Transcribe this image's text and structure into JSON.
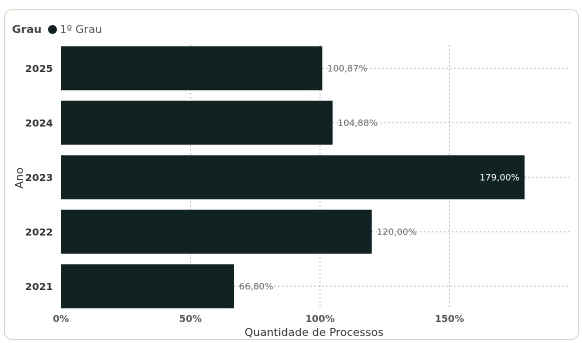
{
  "legend": {
    "title": "Grau",
    "entry": "1º Grau"
  },
  "colors": {
    "bar": "#102322",
    "grid": "#b5b5b5"
  },
  "chart_data": {
    "type": "bar",
    "orientation": "horizontal",
    "categories": [
      "2025",
      "2024",
      "2023",
      "2022",
      "2021"
    ],
    "series": [
      {
        "name": "1º Grau",
        "values": [
          100.87,
          104.88,
          179.0,
          120.0,
          66.8
        ],
        "labels": [
          "100,87%",
          "104,88%",
          "179,00%",
          "120,00%",
          "66,80%"
        ]
      }
    ],
    "xticks": [
      "0%",
      "50%",
      "100%",
      "150%"
    ],
    "xtick_values": [
      0,
      50,
      100,
      150
    ],
    "xlim": [
      0,
      200
    ],
    "xlabel": "Quantidade de Processos",
    "ylabel": "Ano",
    "grid": true,
    "legend_position": "top-left"
  }
}
